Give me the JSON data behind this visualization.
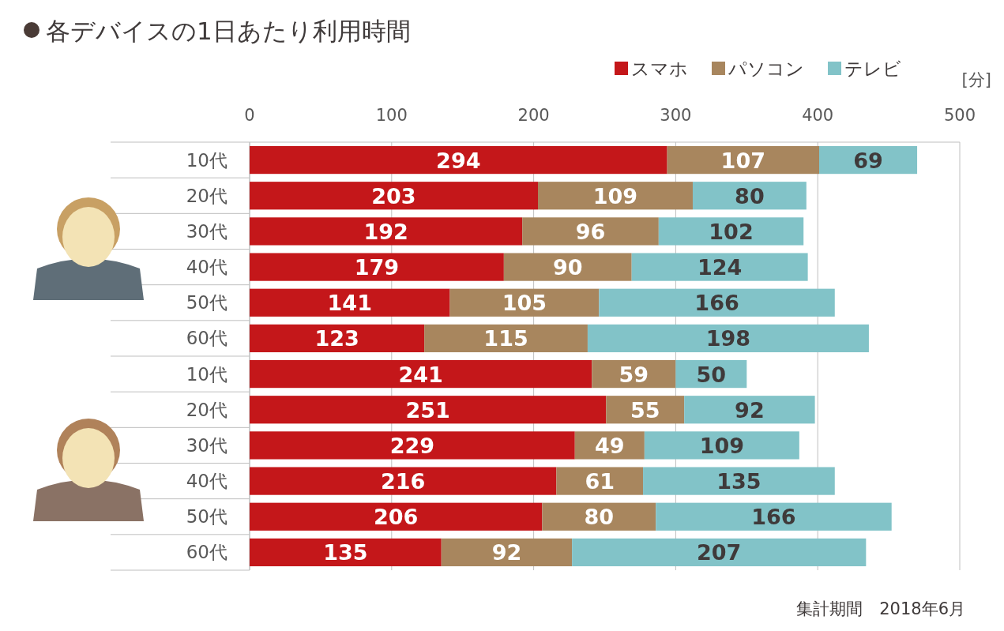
{
  "chart_data": {
    "type": "bar",
    "orientation": "horizontal",
    "stacked": true,
    "title": "各デバイスの1日あたり利用時間",
    "xlabel": "[分]",
    "categories": [
      "10代",
      "20代",
      "30代",
      "40代",
      "50代",
      "60代",
      "10代",
      "20代",
      "30代",
      "40代",
      "50代",
      "60代"
    ],
    "series": [
      {
        "name": "スマホ",
        "color": "#c4171a",
        "values": [
          294,
          203,
          192,
          179,
          141,
          123,
          241,
          251,
          229,
          216,
          206,
          135
        ]
      },
      {
        "name": "パソコン",
        "color": "#a8865e",
        "values": [
          107,
          109,
          96,
          90,
          105,
          115,
          59,
          55,
          49,
          61,
          80,
          92
        ]
      },
      {
        "name": "テレビ",
        "color": "#82c3c8",
        "values": [
          69,
          80,
          102,
          124,
          166,
          198,
          50,
          92,
          109,
          135,
          166,
          207
        ]
      }
    ],
    "xlim": [
      0,
      500
    ],
    "xticks": [
      0,
      100,
      200,
      300,
      400,
      500
    ],
    "grid": "x",
    "legend": "top right",
    "data_labels": true,
    "annotations": [
      "集計期間　2018年6月"
    ]
  }
}
